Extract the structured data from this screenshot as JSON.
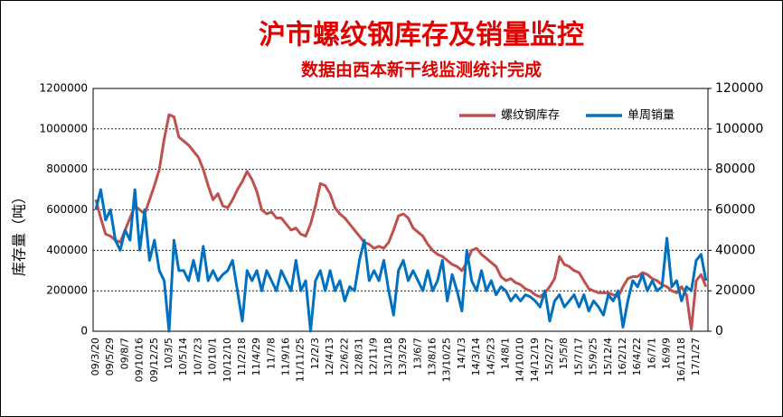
{
  "chart_data": {
    "type": "line",
    "title": "沪市螺纹钢库存及销量监控",
    "subtitle": "数据由西本新干线监测统计完成",
    "ylabel": "库存量（吨）",
    "categories": [
      "09/3/20",
      null,
      null,
      "09/5/29",
      null,
      null,
      "09/8/7",
      null,
      null,
      "09/10/16",
      null,
      null,
      "09/12/25",
      null,
      null,
      "10/3/5",
      null,
      null,
      "10/5/14",
      null,
      null,
      "10/7/23",
      null,
      null,
      "10/10/1",
      null,
      null,
      "10/12/10",
      null,
      null,
      "11/2/18",
      null,
      null,
      "11/4/29",
      null,
      null,
      "11/7/8",
      null,
      null,
      "11/9/16",
      null,
      null,
      "11/11/25",
      null,
      null,
      "12/2/3",
      null,
      null,
      "12/4/13",
      null,
      null,
      "12/6/22",
      null,
      null,
      "12/8/31",
      null,
      null,
      "12/11/9",
      null,
      null,
      "13/1/18",
      null,
      null,
      "13/3/29",
      null,
      null,
      "13/6/7",
      null,
      null,
      "13/8/16",
      null,
      null,
      "13/10/25",
      null,
      null,
      "14/1/3",
      null,
      null,
      "14/3/14",
      null,
      null,
      "14/5/23",
      null,
      null,
      "14/8/1",
      null,
      null,
      "14/10/10",
      null,
      null,
      "14/12/19",
      null,
      null,
      "15/2/27",
      null,
      null,
      "15/5/8",
      null,
      null,
      "15/7/17",
      null,
      null,
      "15/9/25",
      null,
      null,
      "15/12/4",
      null,
      null,
      "16/2/12",
      null,
      null,
      "16/4/22",
      null,
      null,
      "16/7/1",
      null,
      null,
      "16/9/9",
      null,
      null,
      "16/11/18",
      null,
      null,
      "17/1/27",
      null,
      null
    ],
    "series": [
      {
        "name": "螺纹钢库存",
        "color": "#c0504d",
        "axis": "y",
        "values": [
          650000,
          560000,
          480000,
          470000,
          450000,
          440000,
          500000,
          560000,
          620000,
          600000,
          580000,
          650000,
          720000,
          800000,
          950000,
          1070000,
          1060000,
          960000,
          940000,
          920000,
          890000,
          860000,
          800000,
          720000,
          650000,
          680000,
          620000,
          610000,
          650000,
          700000,
          740000,
          790000,
          750000,
          690000,
          600000,
          580000,
          590000,
          560000,
          560000,
          530000,
          500000,
          510000,
          480000,
          470000,
          530000,
          620000,
          730000,
          720000,
          680000,
          610000,
          580000,
          560000,
          530000,
          500000,
          470000,
          440000,
          430000,
          410000,
          420000,
          410000,
          440000,
          500000,
          570000,
          580000,
          560000,
          510000,
          490000,
          470000,
          430000,
          400000,
          380000,
          370000,
          350000,
          330000,
          320000,
          300000,
          340000,
          400000,
          410000,
          380000,
          360000,
          340000,
          320000,
          270000,
          250000,
          260000,
          240000,
          230000,
          210000,
          200000,
          180000,
          170000,
          190000,
          220000,
          260000,
          370000,
          330000,
          320000,
          300000,
          290000,
          250000,
          210000,
          200000,
          190000,
          190000,
          190000,
          180000,
          170000,
          220000,
          260000,
          270000,
          270000,
          290000,
          280000,
          260000,
          250000,
          230000,
          220000,
          200000,
          190000,
          220000,
          180000,
          10000,
          250000,
          280000,
          220000
        ]
      },
      {
        "name": "单周销量",
        "color": "#0070c0",
        "axis": "y2",
        "values": [
          60000,
          70000,
          55000,
          60000,
          45000,
          40000,
          50000,
          45000,
          70000,
          40000,
          60000,
          35000,
          45000,
          30000,
          25000,
          0,
          45000,
          30000,
          30000,
          25000,
          35000,
          25000,
          42000,
          25000,
          30000,
          25000,
          28000,
          30000,
          35000,
          20000,
          5000,
          30000,
          25000,
          30000,
          20000,
          30000,
          25000,
          20000,
          30000,
          25000,
          20000,
          35000,
          20000,
          25000,
          0,
          25000,
          30000,
          20000,
          30000,
          20000,
          25000,
          15000,
          22000,
          20000,
          35000,
          45000,
          25000,
          30000,
          25000,
          35000,
          20000,
          8000,
          30000,
          35000,
          25000,
          30000,
          25000,
          20000,
          30000,
          20000,
          25000,
          35000,
          15000,
          28000,
          20000,
          10000,
          40000,
          25000,
          20000,
          30000,
          20000,
          25000,
          18000,
          22000,
          20000,
          15000,
          18000,
          15000,
          18000,
          17000,
          15000,
          12000,
          20000,
          5000,
          15000,
          18000,
          12000,
          15000,
          18000,
          12000,
          18000,
          10000,
          15000,
          12000,
          8000,
          18000,
          15000,
          20000,
          2000,
          15000,
          25000,
          22000,
          28000,
          20000,
          25000,
          20000,
          22000,
          46000,
          22000,
          25000,
          15000,
          22000,
          20000,
          35000,
          38000,
          25000
        ]
      }
    ],
    "ylim": [
      0,
      1200000
    ],
    "yticks": [
      0,
      200000,
      400000,
      600000,
      800000,
      1000000,
      1200000
    ],
    "y2lim": [
      0,
      120000
    ],
    "y2ticks": [
      0,
      20000,
      40000,
      60000,
      80000,
      100000,
      120000
    ],
    "grid": true,
    "legend": "top-right"
  }
}
